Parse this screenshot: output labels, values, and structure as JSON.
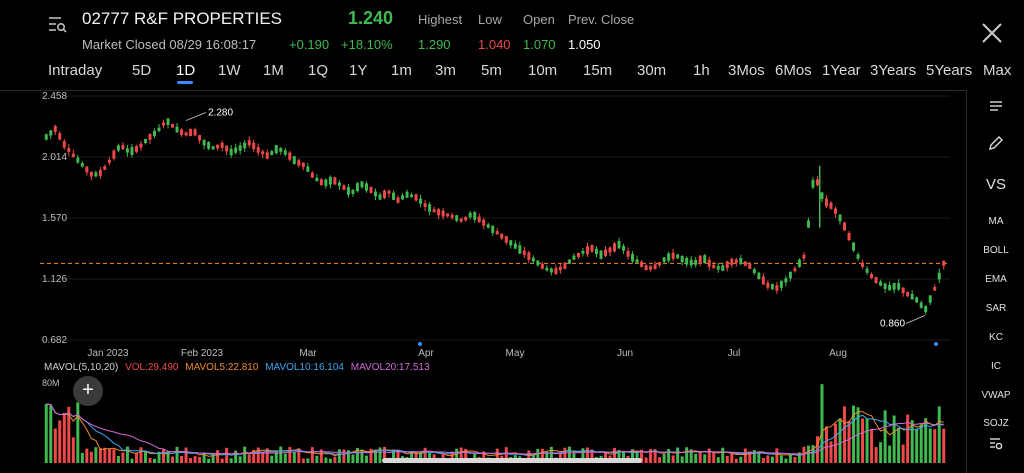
{
  "header": {
    "symbol": "02777 R&F PROPERTIES",
    "price": "1.240",
    "market_status": "Market Closed 08/29 16:08:17",
    "change": "+0.190",
    "change_pct": "+18.10%",
    "quote": [
      {
        "label": "Highest",
        "value": "1.290",
        "color": "#3fb950"
      },
      {
        "label": "Low",
        "value": "1.040",
        "color": "#f04848"
      },
      {
        "label": "Open",
        "value": "1.070",
        "color": "#3fb950"
      },
      {
        "label": "Prev. Close",
        "value": "1.050",
        "color": "#ffffff"
      }
    ]
  },
  "tabs": [
    "Intraday",
    "5D",
    "1D",
    "1W",
    "1M",
    "1Q",
    "1Y",
    "1m",
    "3m",
    "5m",
    "10m",
    "15m",
    "30m",
    "1h",
    "3Mos",
    "6Mos",
    "1Year",
    "3Years",
    "5Years",
    "Max"
  ],
  "active_tab": "1D",
  "side_tools": {
    "vs": "VS",
    "indicators": [
      "MA",
      "BOLL",
      "EMA",
      "SAR",
      "KC",
      "IC",
      "VWAP",
      "SOJZ"
    ]
  },
  "mavol": {
    "label": "MAVOL(5,10,20)",
    "vol": "VOL:29.490",
    "ma5": "MAVOL5:22.810",
    "ma10": "MAVOL10:16.104",
    "ma20": "MAVOL20:17.513"
  },
  "add_label": "+",
  "colors": {
    "up": "#3fb950",
    "down": "#f04848",
    "accent": "#3d8bff",
    "ma5": "#f08a2c",
    "ma10": "#3da9f5",
    "ma20": "#d36ad6"
  },
  "chart_data": {
    "type": "candlestick",
    "y_tick_labels": [
      "2.458",
      "2.014",
      "1.570",
      "1.126",
      "0.682"
    ],
    "ylim": [
      0.682,
      2.458
    ],
    "x_tick_labels": [
      "Jan 2023",
      "Feb 2023",
      "Mar",
      "Apr",
      "May",
      "Jun",
      "Jul",
      "Aug"
    ],
    "annotations": [
      {
        "label": "2.280",
        "value": 2.28
      },
      {
        "label": "0.860",
        "value": 0.86
      }
    ],
    "reference_line": 1.24,
    "close_path": [
      2.16,
      2.22,
      2.1,
      2.02,
      1.95,
      1.88,
      1.9,
      2.0,
      2.1,
      2.05,
      2.08,
      2.15,
      2.2,
      2.28,
      2.22,
      2.18,
      2.2,
      2.12,
      2.08,
      2.1,
      2.05,
      2.08,
      2.12,
      2.06,
      2.02,
      2.08,
      2.04,
      1.98,
      1.95,
      1.86,
      1.82,
      1.85,
      1.8,
      1.75,
      1.82,
      1.78,
      1.72,
      1.76,
      1.7,
      1.74,
      1.72,
      1.66,
      1.62,
      1.6,
      1.58,
      1.55,
      1.6,
      1.55,
      1.5,
      1.45,
      1.4,
      1.35,
      1.3,
      1.25,
      1.2,
      1.18,
      1.22,
      1.28,
      1.32,
      1.35,
      1.3,
      1.34,
      1.38,
      1.3,
      1.25,
      1.2,
      1.22,
      1.28,
      1.3,
      1.26,
      1.24,
      1.28,
      1.22,
      1.2,
      1.25,
      1.26,
      1.22,
      1.15,
      1.08,
      1.06,
      1.12,
      1.2,
      1.3,
      1.9,
      1.7,
      1.65,
      1.55,
      1.4,
      1.25,
      1.16,
      1.1,
      1.06,
      1.08,
      1.02,
      0.98,
      0.9,
      1.05,
      1.24
    ],
    "volume_label": "80M"
  }
}
